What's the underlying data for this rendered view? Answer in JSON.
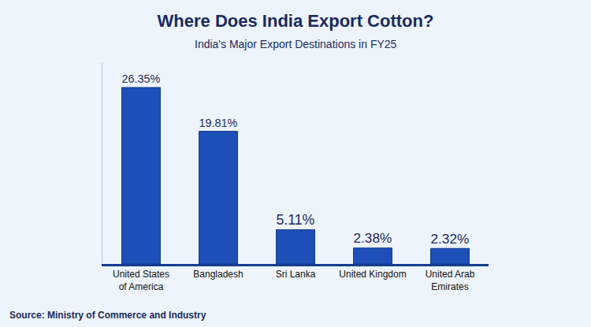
{
  "chart_data": {
    "type": "bar",
    "title": "Where Does India Export Cotton?",
    "subtitle": "India's Major Export Destinations in FY25",
    "source": "Source: Ministry of Commerce and Industry",
    "categories": [
      "United States of America",
      "Bangladesh",
      "Sri Lanka",
      "United Kingdom",
      "United Arab Emirates"
    ],
    "values": [
      26.35,
      19.81,
      5.11,
      2.38,
      2.32
    ],
    "value_labels": [
      "26.35%",
      "19.81%",
      "5.11%",
      "2.38%",
      "2.32%"
    ],
    "data_labels": true,
    "color": "#1d4fb8",
    "ylim": [
      0,
      30
    ],
    "tick_labels": "x",
    "grid": false
  }
}
